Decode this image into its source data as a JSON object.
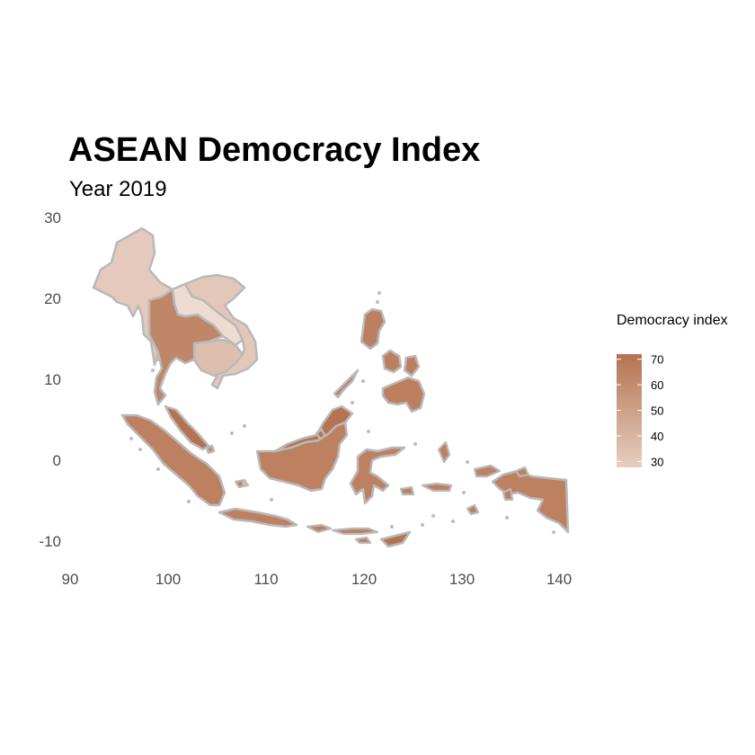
{
  "chart_data": {
    "type": "choropleth",
    "title": "ASEAN Democracy Index",
    "subtitle": "Year 2019",
    "x_ticks": [
      "90",
      "100",
      "110",
      "120",
      "130",
      "140"
    ],
    "y_ticks": [
      "30",
      "20",
      "10",
      "0",
      "-10"
    ],
    "xlim": [
      90,
      141
    ],
    "ylim": [
      -11,
      30
    ],
    "legend": {
      "title": "Democracy index",
      "ticks": [
        "70",
        "60",
        "50",
        "40",
        "30"
      ],
      "tick_values": [
        70,
        60,
        50,
        40,
        30
      ],
      "range": [
        21,
        72
      ],
      "color_low": "#eedcd3",
      "color_high": "#b57350",
      "placement": "right"
    },
    "countries": [
      {
        "name": "Myanmar",
        "value": 30
      },
      {
        "name": "Laos",
        "value": 21
      },
      {
        "name": "Vietnam",
        "value": 31
      },
      {
        "name": "Cambodia",
        "value": 35
      },
      {
        "name": "Thailand",
        "value": 63
      },
      {
        "name": "Malaysia",
        "value": 72
      },
      {
        "name": "Indonesia",
        "value": 65
      },
      {
        "name": "Philippines",
        "value": 66
      },
      {
        "name": "Singapore",
        "value": 60
      },
      {
        "name": "Brunei",
        "value": 72
      },
      {
        "name": "Timor-Leste",
        "value": 72
      }
    ],
    "grid": false
  }
}
